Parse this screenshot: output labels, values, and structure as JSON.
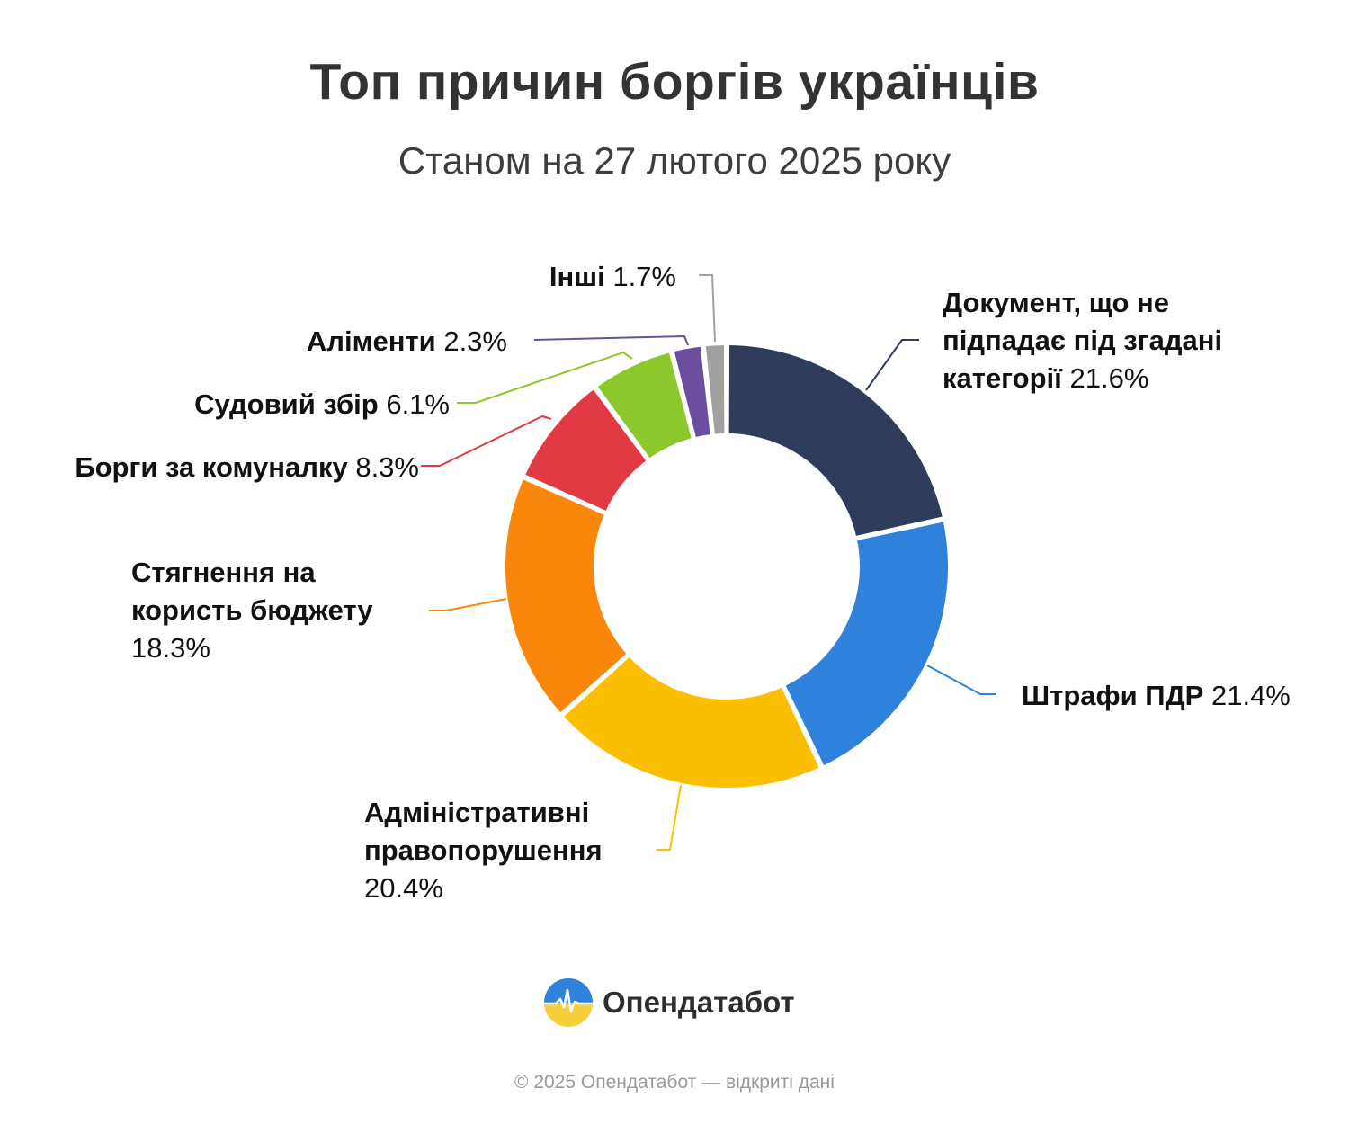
{
  "chart_data": {
    "type": "pie",
    "variant": "donut",
    "title": "Топ причин боргів українців",
    "subtitle": "Станом на 27 лютого 2025 року",
    "unit": "%",
    "slices": [
      {
        "name": "Документ, що не підпадає під згадані категорії",
        "value": 21.6,
        "value_label": "21.6%",
        "color": "#2f3c5c",
        "label_lines": [
          "Документ, що не",
          "підпадає під згадані",
          "категорії"
        ]
      },
      {
        "name": "Штрафи ПДР",
        "value": 21.4,
        "value_label": "21.4%",
        "color": "#2f82dc",
        "label_lines": [
          "Штрафи ПДР"
        ]
      },
      {
        "name": "Адміністративні правопорушення",
        "value": 20.4,
        "value_label": "20.4%",
        "color": "#fcbf00",
        "label_lines": [
          "Адміністративні",
          "правопорушення"
        ]
      },
      {
        "name": "Стягнення на користь бюджету",
        "value": 18.3,
        "value_label": "18.3%",
        "color": "#f8870c",
        "label_lines": [
          "Стягнення на",
          "користь бюджету"
        ]
      },
      {
        "name": "Борги за комуналку",
        "value": 8.3,
        "value_label": "8.3%",
        "color": "#e23a45",
        "label_lines": [
          "Борги за комуналку"
        ]
      },
      {
        "name": "Судовий збір",
        "value": 6.1,
        "value_label": "6.1%",
        "color": "#8cc72b",
        "label_lines": [
          "Судовий збір"
        ]
      },
      {
        "name": "Аліменти",
        "value": 2.3,
        "value_label": "2.3%",
        "color": "#6b4ea0",
        "label_lines": [
          "Аліменти"
        ]
      },
      {
        "name": "Інші",
        "value": 1.7,
        "value_label": "1.7%",
        "color": "#a0a0a0",
        "label_lines": [
          "Інші"
        ]
      }
    ],
    "legend": "none"
  },
  "brand": {
    "name": "Опендатабот",
    "icon": "opendatabot-logo-icon"
  },
  "footer": {
    "text": "© 2025 Опендатабот — відкриті дані"
  }
}
